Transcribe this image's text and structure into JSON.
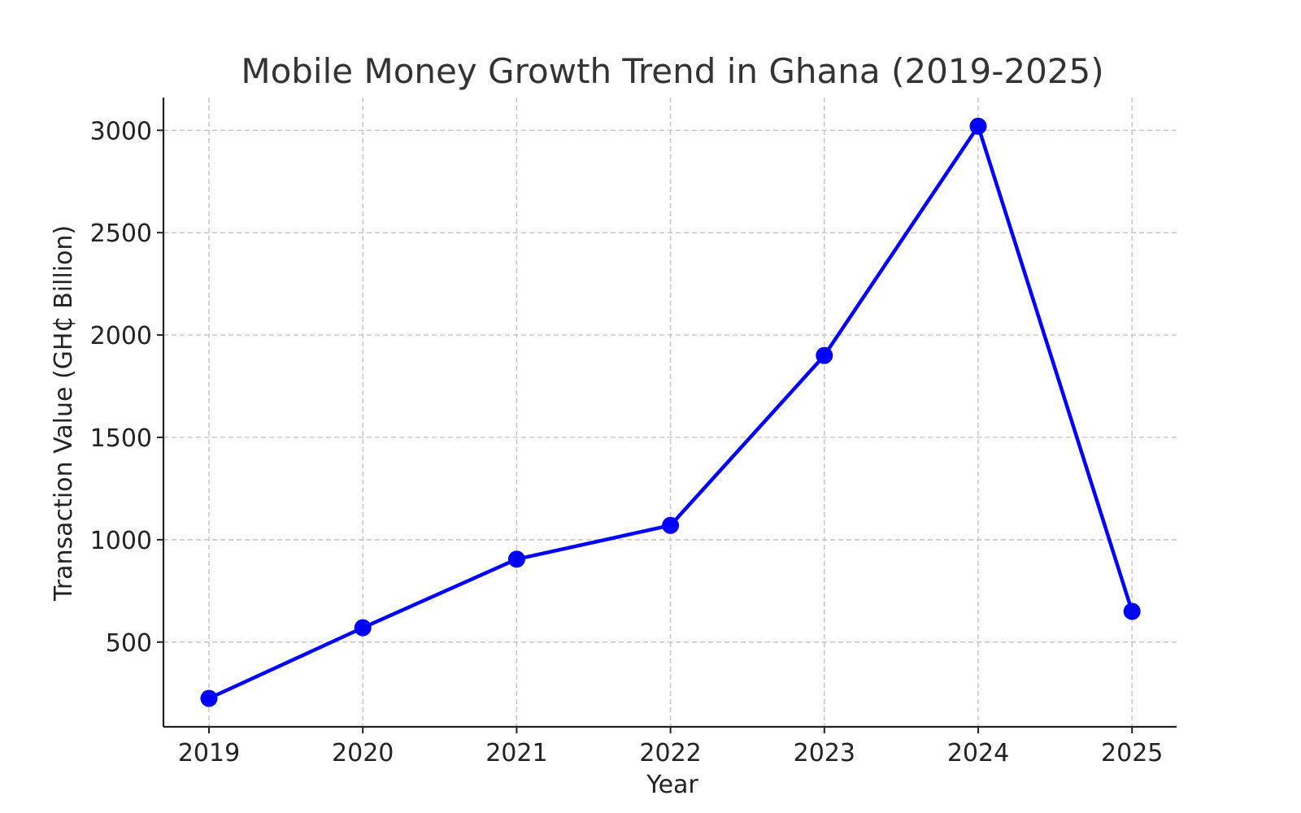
{
  "chart_data": {
    "type": "line",
    "title": "Mobile Money Growth Trend in Ghana (2019-2025)",
    "xlabel": "Year",
    "ylabel": "Transaction Value (GH₵ Billion)",
    "categories": [
      "2019",
      "2020",
      "2021",
      "2022",
      "2023",
      "2024",
      "2025"
    ],
    "series": [
      {
        "values": [
          225,
          570,
          905,
          1070,
          1900,
          3020,
          650
        ],
        "color": "#0000ff",
        "marker": "circle"
      }
    ],
    "yticks": [
      500,
      1000,
      1500,
      2000,
      2500,
      3000
    ],
    "ytick_labels": [
      "500",
      "1000",
      "1500",
      "2000",
      "2500",
      "3000"
    ],
    "ylim": [
      86,
      3160
    ],
    "grid": true
  }
}
